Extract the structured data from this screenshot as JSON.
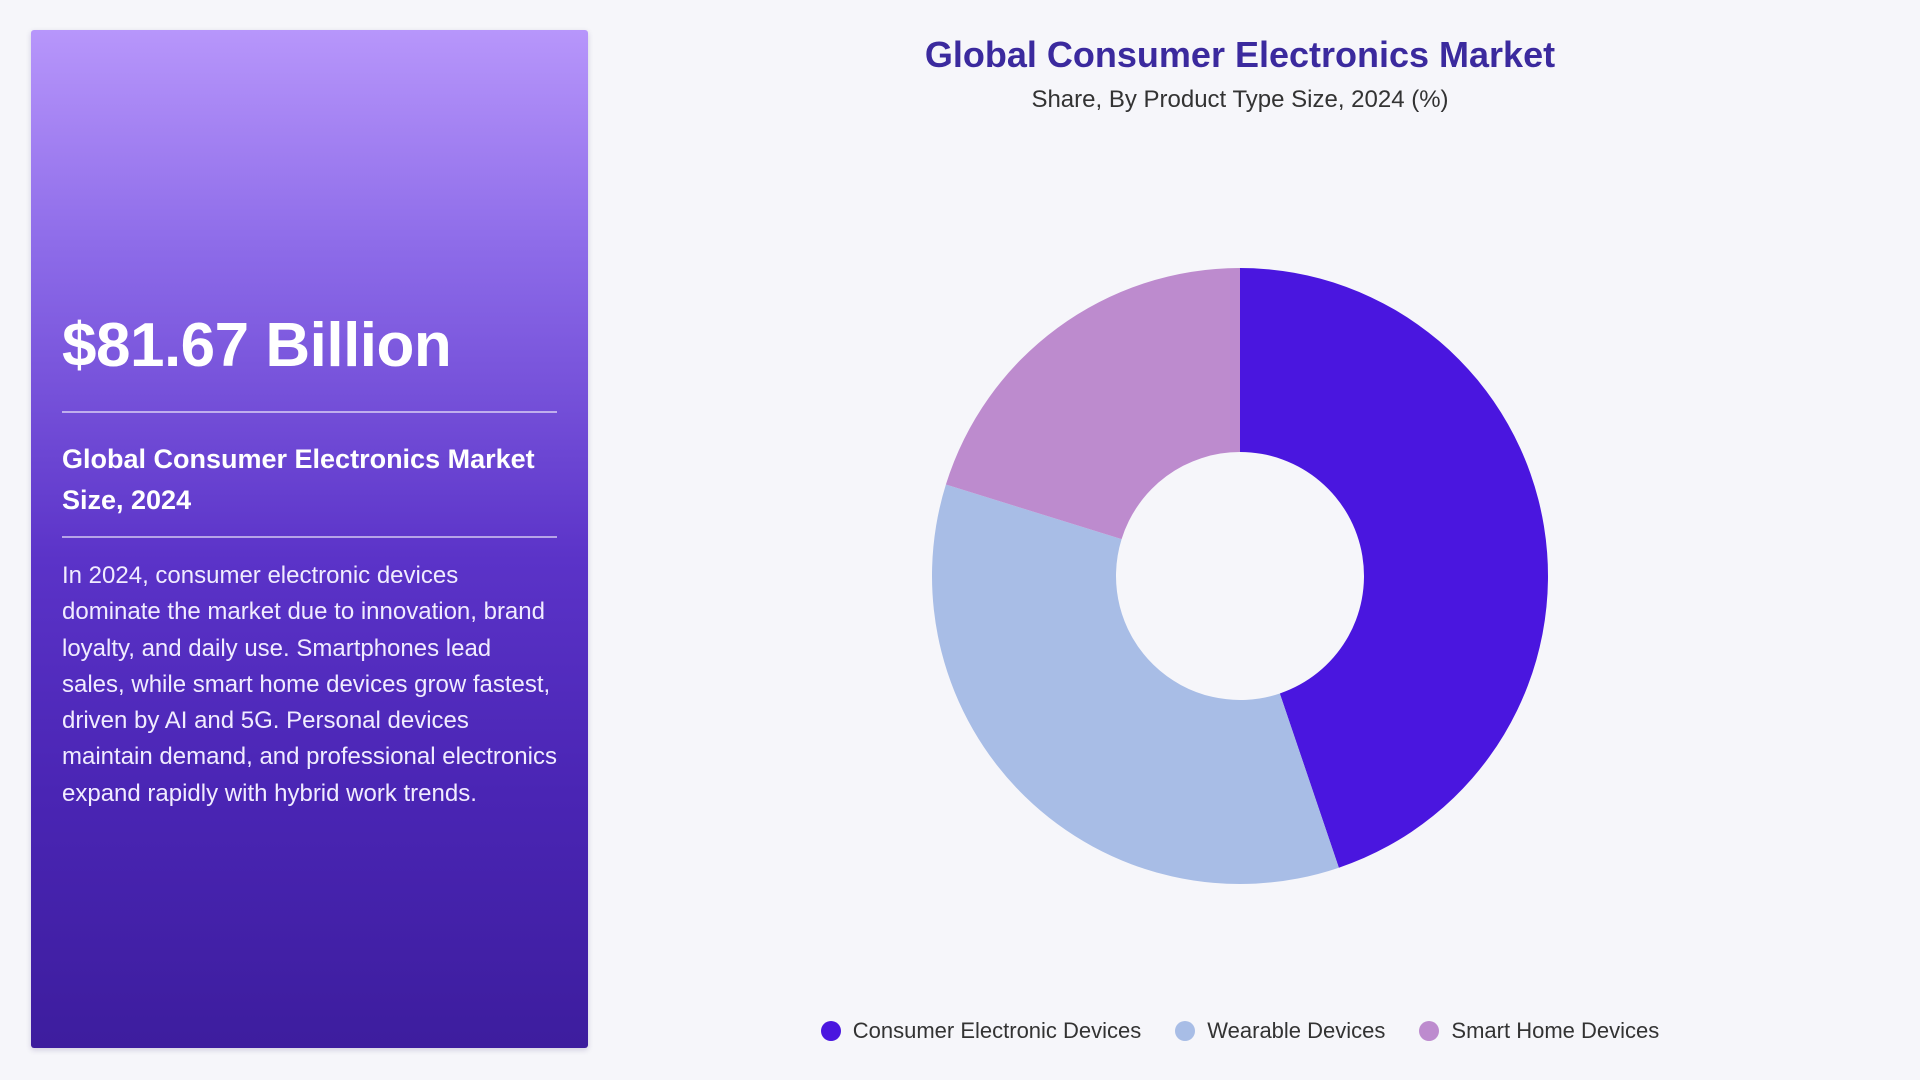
{
  "panel": {
    "value": "$81.67 Billion",
    "title": "Global Consumer Electronics Market Size, 2024",
    "description": "In 2024, consumer electronic devices dominate the market due to innovation, brand loyalty, and daily use. Smartphones lead sales, while smart home devices grow fastest, driven by AI and 5G. Personal devices maintain demand, and professional electronics expand rapidly with hybrid work trends."
  },
  "chart_data": {
    "type": "pie",
    "variant": "donut",
    "title": "Global Consumer Electronics Market",
    "subtitle": "Share, By Product Type Size, 2024 (%)",
    "categories": [
      "Consumer Electronic Devices",
      "Wearable Devices",
      "Smart Home Devices"
    ],
    "values": [
      44.8,
      35.0,
      20.2
    ],
    "colors": [
      "#4a16df",
      "#a8bde6",
      "#bd8bce"
    ],
    "legend_position": "bottom-center"
  }
}
